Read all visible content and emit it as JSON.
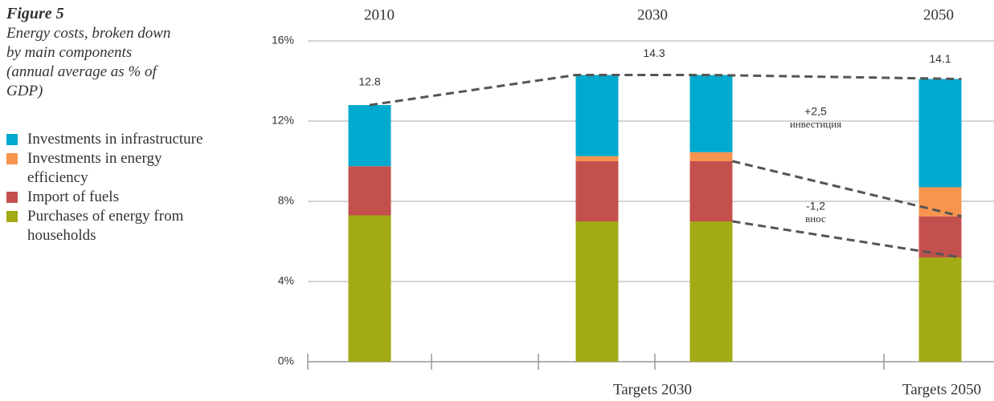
{
  "chart_data": {
    "type": "stacked-bar",
    "title": "Figure 5",
    "subtitle": [
      "Energy costs, broken down",
      "by main components",
      "(annual average as % of",
      "GDP)"
    ],
    "categories": [
      null,
      null,
      null,
      null
    ],
    "series": [
      {
        "name": "Purchases of energy from households",
        "color": "#a2aa15",
        "values": [
          7.3,
          7.0,
          7.0,
          5.2
        ]
      },
      {
        "name": "Import of fuels",
        "color": "#c4504d",
        "values": [
          2.45,
          3.0,
          3.0,
          2.05
        ]
      },
      {
        "name": "Investments in energy efficiency",
        "color": "#f7944f",
        "values": [
          0,
          0.25,
          0.45,
          1.45
        ]
      },
      {
        "name": "Investments in infrastructure",
        "color": "#00a9ce",
        "values": [
          3.05,
          4.05,
          3.85,
          5.4
        ]
      }
    ],
    "total_labels": [
      12.8,
      14.3,
      14.1
    ],
    "top_labels": [
      "2010",
      "2030",
      "2050"
    ],
    "bottom_labels": [
      "Targets 2030",
      "Targets 2050"
    ],
    "annotations": [
      {
        "value": "+2,5",
        "label": "инвестиция"
      },
      {
        "value": "-1,2",
        "label": "внос"
      }
    ],
    "ylim": [
      0,
      16
    ],
    "yticks": [
      {
        "value": 0,
        "label": "0%"
      },
      {
        "value": 4,
        "label": "4%"
      },
      {
        "value": 8,
        "label": "8%"
      },
      {
        "value": 12,
        "label": "12%"
      },
      {
        "value": 16,
        "label": "16%"
      }
    ],
    "grid": true
  }
}
